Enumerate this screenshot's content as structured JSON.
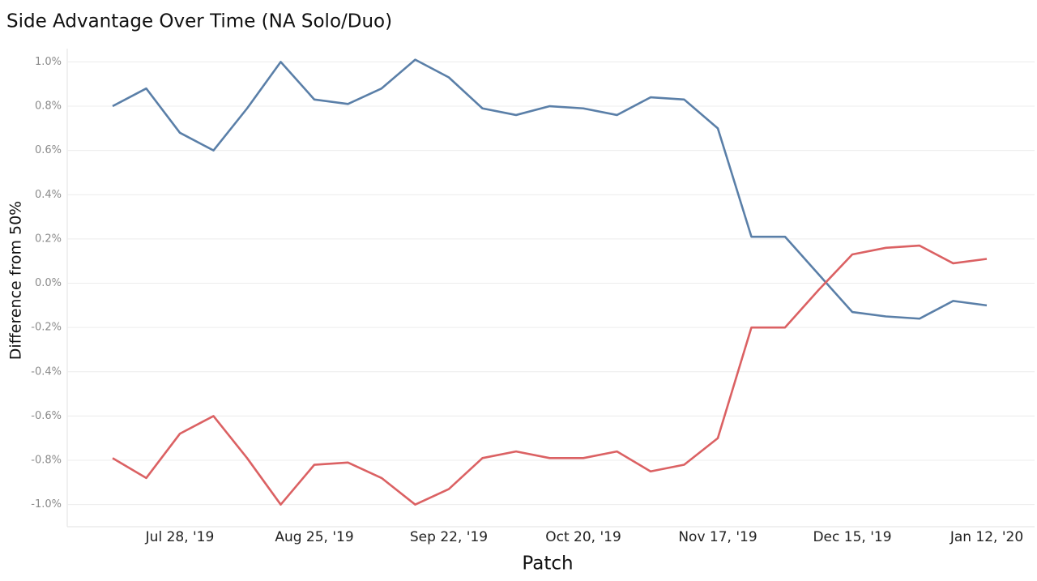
{
  "chart_data": {
    "type": "line",
    "title": "Side Advantage Over Time (NA Solo/Duo)",
    "x_label": "Patch",
    "y_label": "Difference from 50%",
    "categories": [
      null,
      null,
      "Jul 28, '19",
      null,
      null,
      null,
      "Aug 25, '19",
      null,
      null,
      null,
      "Sep 22, '19",
      null,
      null,
      null,
      "Oct 20, '19",
      null,
      null,
      null,
      "Nov 17, '19",
      null,
      null,
      null,
      "Dec 15, '19",
      null,
      null,
      null,
      "Jan 12, '20"
    ],
    "series": [
      {
        "color": "#5a7fa8",
        "values": [
          0.8,
          0.88,
          0.68,
          0.6,
          0.79,
          1.0,
          0.83,
          0.81,
          0.88,
          1.01,
          0.93,
          0.79,
          0.76,
          0.8,
          0.79,
          0.76,
          0.84,
          0.83,
          0.7,
          0.21,
          0.21,
          0.04,
          -0.13,
          -0.15,
          -0.16,
          -0.08,
          -0.1
        ]
      },
      {
        "color": "#db6163",
        "values": [
          -0.79,
          -0.88,
          -0.68,
          -0.6,
          -0.79,
          -1.0,
          -0.82,
          -0.81,
          -0.88,
          -1.0,
          -0.93,
          -0.79,
          -0.76,
          -0.79,
          -0.79,
          -0.76,
          -0.85,
          -0.82,
          -0.7,
          -0.2,
          -0.2,
          -0.03,
          0.13,
          0.16,
          0.17,
          0.09,
          0.11
        ]
      }
    ],
    "ylim": [
      -1.1,
      1.06
    ],
    "yticks": [
      {
        "value": -1.0,
        "label": "-1.0%"
      },
      {
        "value": -0.8,
        "label": "-0.8%"
      },
      {
        "value": -0.6,
        "label": "-0.6%"
      },
      {
        "value": -0.4,
        "label": "-0.4%"
      },
      {
        "value": -0.2,
        "label": "-0.2%"
      },
      {
        "value": 0.0,
        "label": "0.0%"
      },
      {
        "value": 0.2,
        "label": "0.2%"
      },
      {
        "value": 0.4,
        "label": "0.4%"
      },
      {
        "value": 0.6,
        "label": "0.6%"
      },
      {
        "value": 0.8,
        "label": "0.8%"
      },
      {
        "value": 1.0,
        "label": "1.0%"
      }
    ],
    "grid": true
  }
}
